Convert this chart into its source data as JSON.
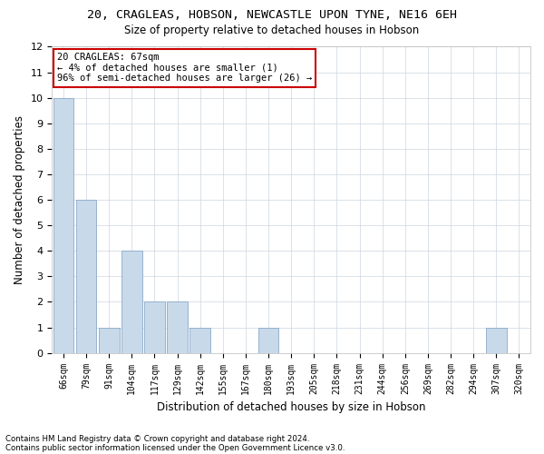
{
  "title1": "20, CRAGLEAS, HOBSON, NEWCASTLE UPON TYNE, NE16 6EH",
  "title2": "Size of property relative to detached houses in Hobson",
  "xlabel": "Distribution of detached houses by size in Hobson",
  "ylabel": "Number of detached properties",
  "categories": [
    "66sqm",
    "79sqm",
    "91sqm",
    "104sqm",
    "117sqm",
    "129sqm",
    "142sqm",
    "155sqm",
    "167sqm",
    "180sqm",
    "193sqm",
    "205sqm",
    "218sqm",
    "231sqm",
    "244sqm",
    "256sqm",
    "269sqm",
    "282sqm",
    "294sqm",
    "307sqm",
    "320sqm"
  ],
  "values": [
    10,
    6,
    1,
    4,
    2,
    2,
    1,
    0,
    0,
    1,
    0,
    0,
    0,
    0,
    0,
    0,
    0,
    0,
    0,
    1,
    0
  ],
  "bar_color": "#c8d9ea",
  "bar_edge_color": "#8aaac8",
  "annotation_text": "20 CRAGLEAS: 67sqm\n← 4% of detached houses are smaller (1)\n96% of semi-detached houses are larger (26) →",
  "annotation_box_color": "#ffffff",
  "annotation_box_edge_color": "#cc0000",
  "ylim": [
    0,
    12
  ],
  "yticks": [
    0,
    1,
    2,
    3,
    4,
    5,
    6,
    7,
    8,
    9,
    10,
    11,
    12
  ],
  "footer1": "Contains HM Land Registry data © Crown copyright and database right 2024.",
  "footer2": "Contains public sector information licensed under the Open Government Licence v3.0.",
  "bg_color": "#ffffff",
  "grid_color": "#ccd6e0"
}
